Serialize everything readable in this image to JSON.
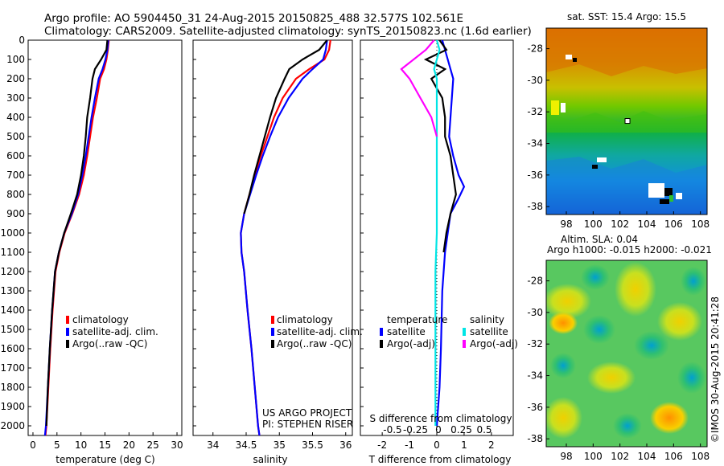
{
  "header": {
    "line1": "Argo profile: AO 5904450_31 24-Aug-2015 20150825_488 32.577S 102.561E",
    "line2": "Climatology: CARS2009. Satellite-adjusted climatology: synTS_20150823.nc (1.6d earlier)"
  },
  "sst_panel": {
    "title": "sat. SST: 15.4 Argo: 15.5",
    "below_label": "Altim. SLA: 0.04"
  },
  "sla_panel": {
    "title": "Argo h1000: -0.015 h2000: -0.021"
  },
  "credits": {
    "project": "US ARGO PROJECT",
    "pi": "PI: STEPHEN RISER",
    "stamp": "©IMOS 30-Aug-2015 20:41:28"
  },
  "colors": {
    "climatology": "#ff0000",
    "satellite": "#0000ff",
    "argo": "#000000",
    "sat_salinity": "#00e5e5",
    "argo_salinity": "#ff00ff"
  },
  "chart_data": [
    {
      "type": "line",
      "xlabel": "temperature (deg C)",
      "ylabel": "",
      "xlim": [
        -1,
        31
      ],
      "ylim": [
        2050,
        0
      ],
      "xticks": [
        "0",
        "5",
        "10",
        "15",
        "20",
        "25",
        "30"
      ],
      "yticks": [
        "0",
        "100",
        "200",
        "300",
        "400",
        "500",
        "600",
        "700",
        "800",
        "900",
        "1000",
        "1100",
        "1200",
        "1300",
        "1400",
        "1500",
        "1600",
        "1700",
        "1800",
        "1900",
        "2000"
      ],
      "legend": [
        "climatology",
        "satellite-adj. clim.",
        "Argo(..raw -QC)"
      ],
      "legend_position": "lower-right",
      "series": [
        {
          "name": "climatology",
          "color": "#ff0000",
          "points": [
            [
              15.8,
              0
            ],
            [
              15.6,
              50
            ],
            [
              15.3,
              100
            ],
            [
              14.8,
              150
            ],
            [
              14.0,
              200
            ],
            [
              13.3,
              300
            ],
            [
              12.5,
              400
            ],
            [
              11.9,
              500
            ],
            [
              11.3,
              600
            ],
            [
              10.6,
              700
            ],
            [
              9.6,
              800
            ],
            [
              8.2,
              900
            ],
            [
              6.6,
              1000
            ],
            [
              5.5,
              1100
            ],
            [
              4.7,
              1200
            ],
            [
              4.1,
              1400
            ],
            [
              3.6,
              1600
            ],
            [
              3.2,
              1800
            ],
            [
              2.8,
              2000
            ],
            [
              2.6,
              2050
            ]
          ]
        },
        {
          "name": "satellite-adj. clim.",
          "color": "#0000ff",
          "points": [
            [
              15.7,
              0
            ],
            [
              15.5,
              50
            ],
            [
              15.1,
              100
            ],
            [
              14.5,
              150
            ],
            [
              13.7,
              200
            ],
            [
              12.9,
              300
            ],
            [
              12.2,
              400
            ],
            [
              11.6,
              500
            ],
            [
              11.0,
              600
            ],
            [
              10.3,
              700
            ],
            [
              9.4,
              800
            ],
            [
              8.1,
              900
            ],
            [
              6.5,
              1000
            ],
            [
              5.4,
              1100
            ],
            [
              4.6,
              1200
            ],
            [
              4.0,
              1400
            ],
            [
              3.5,
              1600
            ],
            [
              3.1,
              1800
            ],
            [
              2.7,
              2000
            ],
            [
              2.5,
              2050
            ]
          ]
        },
        {
          "name": "Argo(..raw -QC)",
          "color": "#000000",
          "points": [
            [
              15.5,
              0
            ],
            [
              15.3,
              50
            ],
            [
              14.2,
              100
            ],
            [
              12.9,
              150
            ],
            [
              12.4,
              200
            ],
            [
              11.9,
              300
            ],
            [
              11.3,
              400
            ],
            [
              11.0,
              500
            ],
            [
              10.6,
              600
            ],
            [
              10.0,
              700
            ],
            [
              9.2,
              800
            ],
            [
              7.9,
              900
            ],
            [
              6.5,
              1000
            ],
            [
              5.4,
              1100
            ],
            [
              4.6,
              1200
            ],
            [
              4.0,
              1400
            ],
            [
              3.5,
              1600
            ],
            [
              3.1,
              1800
            ],
            [
              2.8,
              2000
            ]
          ]
        }
      ]
    },
    {
      "type": "line",
      "xlabel": "salinity",
      "ylabel": "",
      "xlim": [
        33.7,
        36.1
      ],
      "ylim": [
        2050,
        0
      ],
      "xticks": [
        "34",
        "34.5",
        "35",
        "35.5",
        "36"
      ],
      "legend": [
        "climatology",
        "satellite-adj. clim.",
        "Argo(..raw -QC)"
      ],
      "legend_position": "lower-right",
      "series": [
        {
          "name": "climatology",
          "color": "#ff0000",
          "points": [
            [
              35.77,
              0
            ],
            [
              35.75,
              50
            ],
            [
              35.68,
              100
            ],
            [
              35.45,
              150
            ],
            [
              35.25,
              200
            ],
            [
              35.05,
              300
            ],
            [
              34.92,
              400
            ],
            [
              34.82,
              500
            ],
            [
              34.72,
              600
            ],
            [
              34.63,
              700
            ],
            [
              34.55,
              800
            ],
            [
              34.47,
              900
            ],
            [
              34.42,
              1000
            ],
            [
              34.43,
              1100
            ],
            [
              34.47,
              1200
            ],
            [
              34.52,
              1400
            ],
            [
              34.58,
              1600
            ],
            [
              34.63,
              1800
            ],
            [
              34.68,
              2000
            ],
            [
              34.7,
              2050
            ]
          ]
        },
        {
          "name": "satellite-adj. clim.",
          "color": "#0000ff",
          "points": [
            [
              35.72,
              0
            ],
            [
              35.7,
              50
            ],
            [
              35.66,
              100
            ],
            [
              35.5,
              150
            ],
            [
              35.35,
              200
            ],
            [
              35.14,
              300
            ],
            [
              34.98,
              400
            ],
            [
              34.86,
              500
            ],
            [
              34.75,
              600
            ],
            [
              34.65,
              700
            ],
            [
              34.56,
              800
            ],
            [
              34.47,
              900
            ],
            [
              34.42,
              1000
            ],
            [
              34.43,
              1100
            ],
            [
              34.47,
              1200
            ],
            [
              34.52,
              1400
            ],
            [
              34.58,
              1600
            ],
            [
              34.63,
              1800
            ],
            [
              34.68,
              2000
            ],
            [
              34.7,
              2050
            ]
          ]
        },
        {
          "name": "Argo(..raw -QC)",
          "color": "#000000",
          "points": [
            [
              35.72,
              0
            ],
            [
              35.6,
              50
            ],
            [
              35.35,
              100
            ],
            [
              35.15,
              150
            ],
            [
              35.08,
              200
            ],
            [
              34.95,
              300
            ],
            [
              34.86,
              400
            ],
            [
              34.78,
              500
            ],
            [
              34.7,
              600
            ],
            [
              34.62,
              700
            ],
            [
              34.55,
              800
            ],
            [
              34.47,
              900
            ]
          ]
        }
      ]
    },
    {
      "type": "line",
      "xlabel": "T difference from climatology",
      "title": "S difference from climatology",
      "ylabel": "",
      "xlim": [
        -2.8,
        2.8
      ],
      "ylim": [
        2050,
        0
      ],
      "xticks": [
        "-2",
        "-1",
        "0",
        "1",
        "2"
      ],
      "top_xticks": [
        "-0.5",
        "-0.25",
        "0",
        "0.25",
        "0.5"
      ],
      "legend_groups": [
        {
          "title": "temperature",
          "items": [
            "satellite",
            "Argo(-adj)"
          ]
        },
        {
          "title": "salinity",
          "items": [
            "satellite",
            "Argo(-adj)"
          ]
        }
      ],
      "legend_position": "lower-center",
      "series": [
        {
          "name": "temperature satellite",
          "color": "#0000ff",
          "points": [
            [
              0.2,
              0
            ],
            [
              0.3,
              50
            ],
            [
              0.4,
              100
            ],
            [
              0.5,
              150
            ],
            [
              0.6,
              200
            ],
            [
              0.55,
              300
            ],
            [
              0.5,
              400
            ],
            [
              0.45,
              500
            ],
            [
              0.6,
              600
            ],
            [
              0.8,
              700
            ],
            [
              1.0,
              760
            ],
            [
              0.8,
              820
            ],
            [
              0.5,
              900
            ],
            [
              0.4,
              1000
            ],
            [
              0.3,
              1100
            ],
            [
              0.2,
              1300
            ],
            [
              0.15,
              1600
            ],
            [
              0.1,
              1800
            ],
            [
              0.0,
              2000
            ]
          ]
        },
        {
          "name": "temperature Argo(-adj)",
          "color": "#000000",
          "points": [
            [
              0.1,
              0
            ],
            [
              0.35,
              50
            ],
            [
              -0.4,
              100
            ],
            [
              0.3,
              150
            ],
            [
              -0.2,
              200
            ],
            [
              0.2,
              300
            ],
            [
              0.3,
              400
            ],
            [
              0.3,
              500
            ],
            [
              0.5,
              600
            ],
            [
              0.6,
              700
            ],
            [
              0.7,
              800
            ],
            [
              0.5,
              900
            ],
            [
              0.35,
              1000
            ],
            [
              0.25,
              1100
            ]
          ]
        },
        {
          "name": "salinity satellite",
          "color": "#00e5e5",
          "points": [
            [
              0.0,
              0
            ],
            [
              0.1,
              50
            ],
            [
              0.0,
              100
            ],
            [
              -0.1,
              150
            ],
            [
              0.0,
              200
            ],
            [
              0.0,
              300
            ],
            [
              0.0,
              400
            ],
            [
              0.0,
              600
            ],
            [
              0.0,
              800
            ],
            [
              0.0,
              1000
            ],
            [
              -0.05,
              1200
            ],
            [
              -0.05,
              1400
            ],
            [
              -0.05,
              1600
            ],
            [
              -0.05,
              1800
            ],
            [
              -0.05,
              2000
            ]
          ]
        },
        {
          "name": "salinity Argo(-adj)",
          "color": "#ff00ff",
          "points": [
            [
              -0.1,
              0
            ],
            [
              -0.4,
              50
            ],
            [
              -1.3,
              150
            ],
            [
              -1.0,
              200
            ],
            [
              -0.6,
              300
            ],
            [
              -0.2,
              400
            ],
            [
              0.0,
              500
            ]
          ]
        }
      ]
    },
    {
      "type": "heatmap",
      "title": "sat. SST: 15.4 Argo: 15.5",
      "xticks": [
        "98",
        "100",
        "102",
        "104",
        "106",
        "108"
      ],
      "yticks": [
        "-28",
        "-30",
        "-32",
        "-34",
        "-36",
        "-38"
      ],
      "xlim": [
        96.5,
        108.5
      ],
      "ylim": [
        -38.5,
        -26.7
      ],
      "marker": [
        102.561,
        -32.577
      ],
      "colormap": "jet"
    },
    {
      "type": "heatmap",
      "title": "Argo h1000: -0.015 h2000: -0.021",
      "xticks": [
        "98",
        "100",
        "102",
        "104",
        "106",
        "108"
      ],
      "yticks": [
        "-28",
        "-30",
        "-32",
        "-34",
        "-36",
        "-38"
      ],
      "xlim": [
        96.5,
        108.5
      ],
      "ylim": [
        -38.5,
        -26.7
      ],
      "colormap": "jet"
    }
  ]
}
